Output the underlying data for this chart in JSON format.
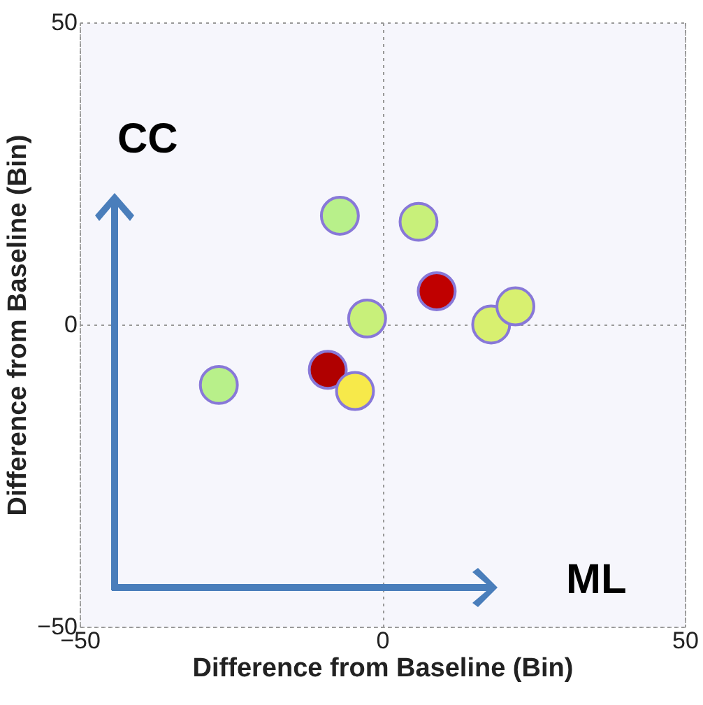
{
  "chart_data": {
    "type": "scatter",
    "xlabel": "Difference from Baseline (Bin)",
    "ylabel": "Difference from Baseline (Bin)",
    "x": [
      -27,
      -7,
      6,
      9,
      -2.5,
      -9,
      -4.5,
      18,
      22
    ],
    "values": [
      -10,
      18,
      17,
      5.5,
      1,
      -7.5,
      -11,
      0,
      3
    ],
    "colors": [
      "#b8f08a",
      "#b8f08a",
      "#c8f07a",
      "#c00000",
      "#c8f07a",
      "#b00000",
      "#f7e94a",
      "#d8f070",
      "#d8f070"
    ],
    "xlim": [
      -50,
      50
    ],
    "ylim": [
      -50,
      50
    ],
    "xticks": [
      -50,
      0,
      50
    ],
    "yticks": [
      -50,
      0,
      50
    ],
    "grid": true,
    "marker": "circle",
    "annotations": [
      "CC",
      "ML"
    ]
  }
}
